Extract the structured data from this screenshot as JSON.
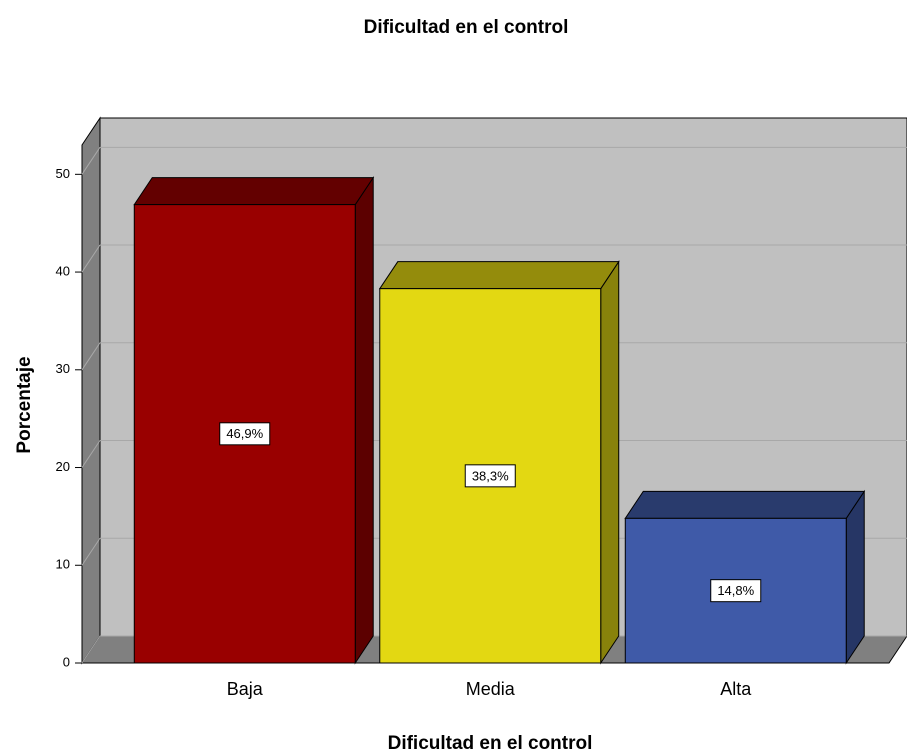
{
  "chart_data": {
    "type": "bar3d",
    "title": "Dificultad en el control",
    "x_label": "Dificultad en el control",
    "y_label": "Porcentaje",
    "categories": [
      "Baja",
      "Media",
      "Alta"
    ],
    "values": [
      46.9,
      38.3,
      14.8
    ],
    "value_labels": [
      "46,9%",
      "38,3%",
      "14,8%"
    ],
    "colors": [
      "#990000",
      "#e3d812",
      "#3f5aa8"
    ],
    "ylim": [
      0,
      53
    ],
    "yticks": [
      0,
      10,
      20,
      30,
      40,
      50
    ],
    "grid": true
  }
}
